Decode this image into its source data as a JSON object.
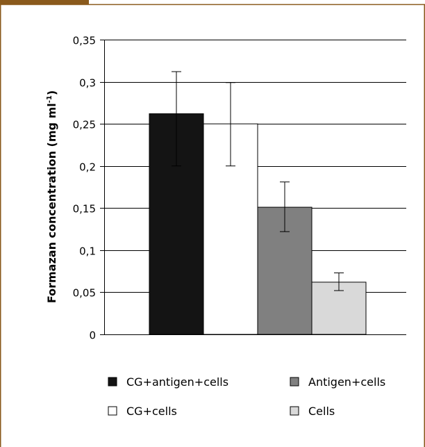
{
  "colors": {
    "frame": "#8a5a1c",
    "grid": "#000000"
  },
  "chart_data": {
    "type": "bar",
    "title": "",
    "xlabel": "",
    "ylabel": "Formazan concentration (mg ml",
    "ylabel_sup": "-1",
    "ylabel_close": ")",
    "ylim": [
      0,
      0.35
    ],
    "yticks": [
      0,
      0.05,
      0.1,
      0.15,
      0.2,
      0.25,
      0.3,
      0.35
    ],
    "ytick_labels": [
      "0",
      "0,05",
      "0,1",
      "0,15",
      "0,2",
      "0,25",
      "0,3",
      "0,35"
    ],
    "grid": true,
    "legend_position": "bottom",
    "series": [
      {
        "name": "CG+antigen+cells",
        "value": 0.262,
        "error_low": 0.2,
        "error_high": 0.312,
        "color": "#141414"
      },
      {
        "name": "CG+cells",
        "value": 0.25,
        "error_low": 0.2,
        "error_high": 0.299,
        "color": "#ffffff"
      },
      {
        "name": "Antigen+cells",
        "value": 0.151,
        "error_low": 0.122,
        "error_high": 0.181,
        "color": "#808080"
      },
      {
        "name": "Cells",
        "value": 0.062,
        "error_low": 0.052,
        "error_high": 0.073,
        "color": "#d9d9d9"
      }
    ]
  }
}
